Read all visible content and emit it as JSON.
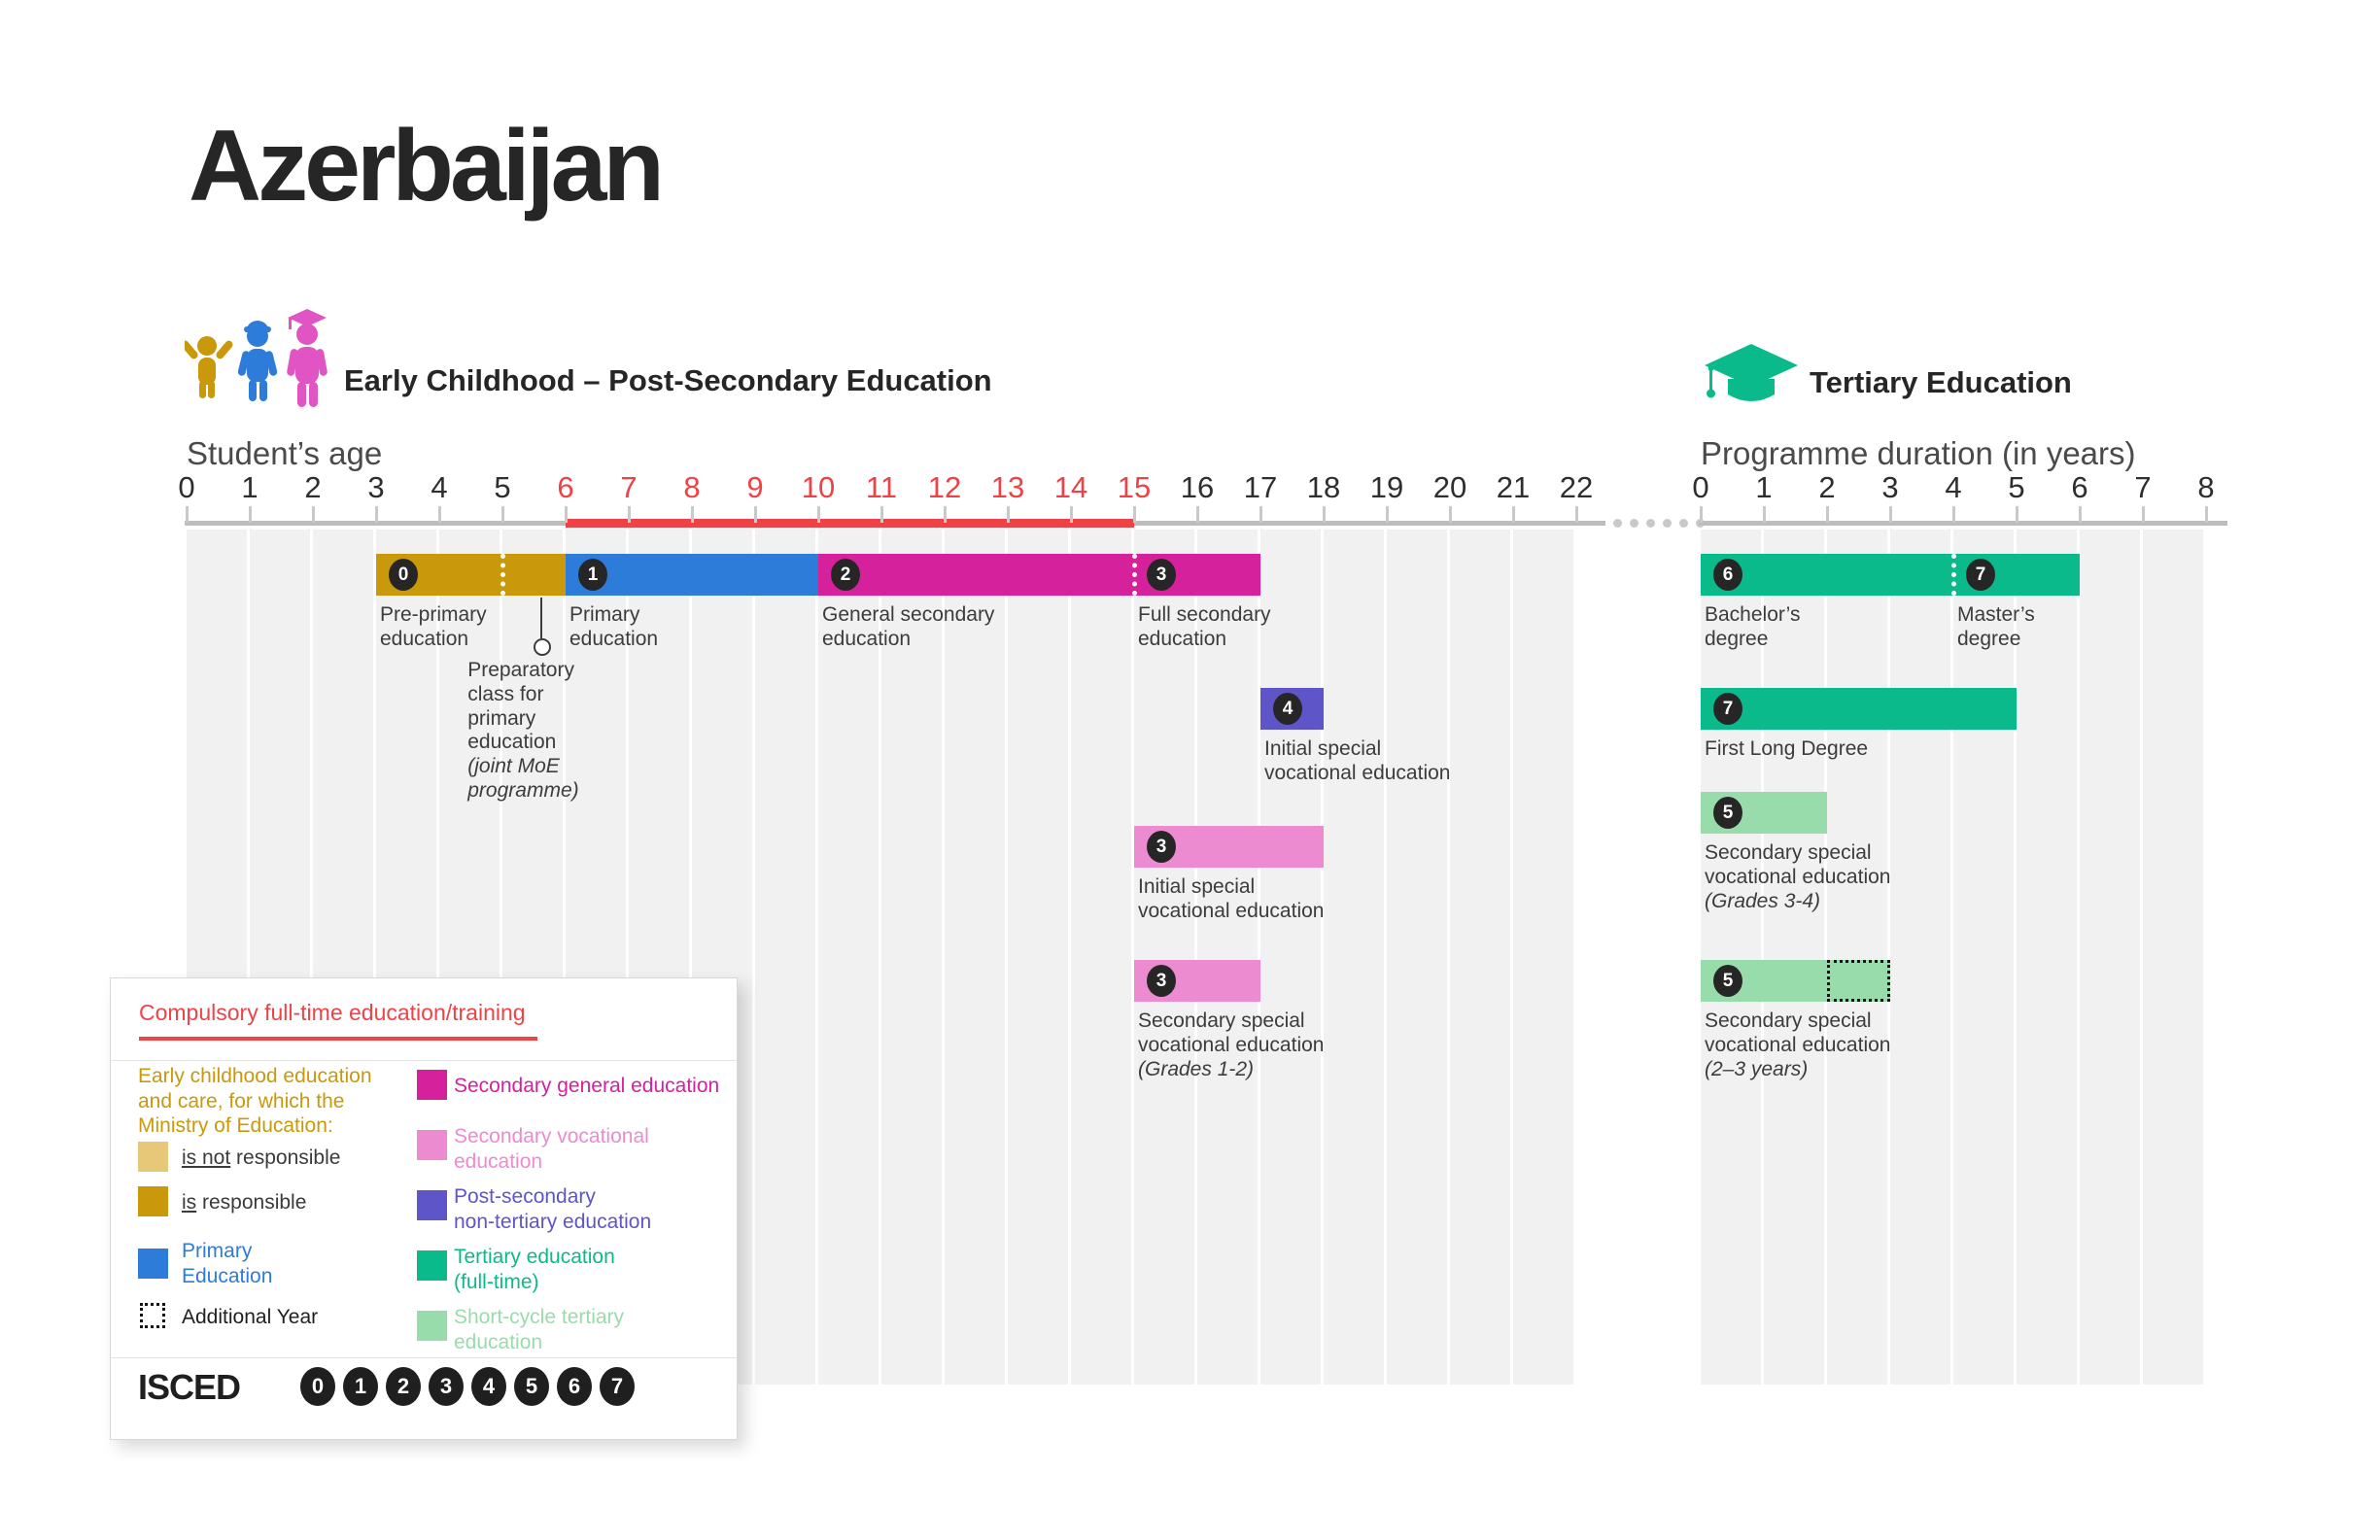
{
  "page": {
    "title": "Azerbaijan"
  },
  "sections": {
    "left": {
      "heading": "Early Childhood – Post-Secondary Education",
      "axis_label": "Student’s age"
    },
    "right": {
      "heading": "Tertiary Education",
      "axis_label": "Programme duration (in years)"
    }
  },
  "colors": {
    "gold": "#C9990B",
    "gold_light": "#E7C878",
    "blue": "#2E7CD9",
    "magenta": "#D6219C",
    "pink": "#EC8BD0",
    "purple": "#5E55C9",
    "green": "#0BBA8B",
    "green_light": "#99DCAC",
    "red": "#EE4247",
    "badge": "#262626"
  },
  "chart_data": [
    {
      "type": "bar",
      "id": "early-childhood-post-secondary",
      "title": "Early Childhood – Post-Secondary Education",
      "xlabel": "Student’s age",
      "xlim": [
        0,
        22
      ],
      "ticks": [
        0,
        1,
        2,
        3,
        4,
        5,
        6,
        7,
        8,
        9,
        10,
        11,
        12,
        13,
        14,
        15,
        16,
        17,
        18,
        19,
        20,
        21,
        22
      ],
      "compulsory_range": [
        6,
        15
      ],
      "bars": [
        {
          "row": 0,
          "start": 3,
          "end": 6,
          "color": "gold",
          "dividers": [
            5
          ],
          "badges": [
            {
              "level": "0",
              "at": 3
            }
          ],
          "labels": [
            {
              "text": "Pre-primary\neducation",
              "at": 3
            }
          ],
          "callout": {
            "at": 5.62,
            "text_at": 4.45,
            "text": "Preparatory\nclass for\nprimary\neducation",
            "note": "(joint MoE\nprogramme)"
          }
        },
        {
          "row": 0,
          "start": 6,
          "end": 10,
          "color": "blue",
          "badges": [
            {
              "level": "1",
              "at": 6
            }
          ],
          "labels": [
            {
              "text": "Primary\neducation",
              "at": 6
            }
          ]
        },
        {
          "row": 0,
          "start": 10,
          "end": 17,
          "color": "magenta",
          "dividers": [
            15
          ],
          "badges": [
            {
              "level": "2",
              "at": 10
            },
            {
              "level": "3",
              "at": 15
            }
          ],
          "labels": [
            {
              "text": "General secondary\neducation",
              "at": 10
            },
            {
              "text": "Full secondary\neducation",
              "at": 15
            }
          ]
        },
        {
          "row": 1,
          "start": 17,
          "end": 18,
          "color": "purple",
          "badges": [
            {
              "level": "4",
              "at": 17
            }
          ],
          "labels": [
            {
              "text": "Initial special\nvocational education",
              "at": 17
            }
          ]
        },
        {
          "row": 2,
          "start": 15,
          "end": 18,
          "color": "pink",
          "badges": [
            {
              "level": "3",
              "at": 15
            }
          ],
          "labels": [
            {
              "text": "Initial special\nvocational education",
              "at": 15
            }
          ]
        },
        {
          "row": 3,
          "start": 15,
          "end": 17,
          "color": "pink",
          "badges": [
            {
              "level": "3",
              "at": 15
            }
          ],
          "labels": [
            {
              "text": "Secondary special\nvocational education",
              "note": "(Grades 1-2)",
              "at": 15
            }
          ]
        }
      ]
    },
    {
      "type": "bar",
      "id": "tertiary-education",
      "title": "Tertiary Education",
      "xlabel": "Programme duration (in years)",
      "xlim": [
        0,
        8
      ],
      "ticks": [
        0,
        1,
        2,
        3,
        4,
        5,
        6,
        7,
        8
      ],
      "bars": [
        {
          "row": 0,
          "start": 0,
          "end": 6,
          "color": "green",
          "dividers": [
            4
          ],
          "badges": [
            {
              "level": "6",
              "at": 0
            },
            {
              "level": "7",
              "at": 4
            }
          ],
          "labels": [
            {
              "text": "Bachelor’s\ndegree",
              "at": 0
            },
            {
              "text": "Master’s\ndegree",
              "at": 4
            }
          ]
        },
        {
          "row": 1,
          "start": 0,
          "end": 5,
          "color": "green",
          "badges": [
            {
              "level": "7",
              "at": 0
            }
          ],
          "labels": [
            {
              "text": "First Long Degree",
              "at": 0
            }
          ]
        },
        {
          "row": 2,
          "start": 0,
          "end": 2,
          "color": "green_light",
          "badges": [
            {
              "level": "5",
              "at": 0
            }
          ],
          "labels": [
            {
              "text": "Secondary special\nvocational education",
              "note": "(Grades 3-4)",
              "at": 0
            }
          ]
        },
        {
          "row": 3,
          "start": 0,
          "end": 2,
          "color": "green_light",
          "extension": {
            "from": 2,
            "to": 3
          },
          "badges": [
            {
              "level": "5",
              "at": 0
            }
          ],
          "labels": [
            {
              "text": "Secondary special\nvocational education",
              "note": "(2–3 years)",
              "at": 0
            }
          ]
        }
      ]
    }
  ],
  "legend": {
    "compulsory_title": "Compulsory full-time education/training",
    "ecec_paragraph": "Early childhood education\nand care, for which the\nMinistry of Education:",
    "responsibility_items": [
      {
        "underlined": "is not",
        "rest": " responsible",
        "swatch": "gold_light"
      },
      {
        "underlined": "is",
        "rest": " responsible",
        "swatch": "gold"
      }
    ],
    "primary_item": {
      "text": "Primary\nEducation",
      "swatch": "blue"
    },
    "additional_year_item": {
      "text": "Additional Year"
    },
    "items": [
      {
        "text": "Secondary general education",
        "color": "magenta"
      },
      {
        "text": "Secondary vocational\neducation",
        "color": "pink"
      },
      {
        "text": "Post-secondary\nnon-tertiary education",
        "color": "purple"
      },
      {
        "text": "Tertiary education\n(full-time)",
        "color": "green"
      },
      {
        "text": "Short-cycle tertiary\neducation",
        "color": "green_light"
      }
    ],
    "isced": {
      "label": "ISCED",
      "levels": [
        "0",
        "1",
        "2",
        "3",
        "4",
        "5",
        "6",
        "7"
      ]
    }
  }
}
